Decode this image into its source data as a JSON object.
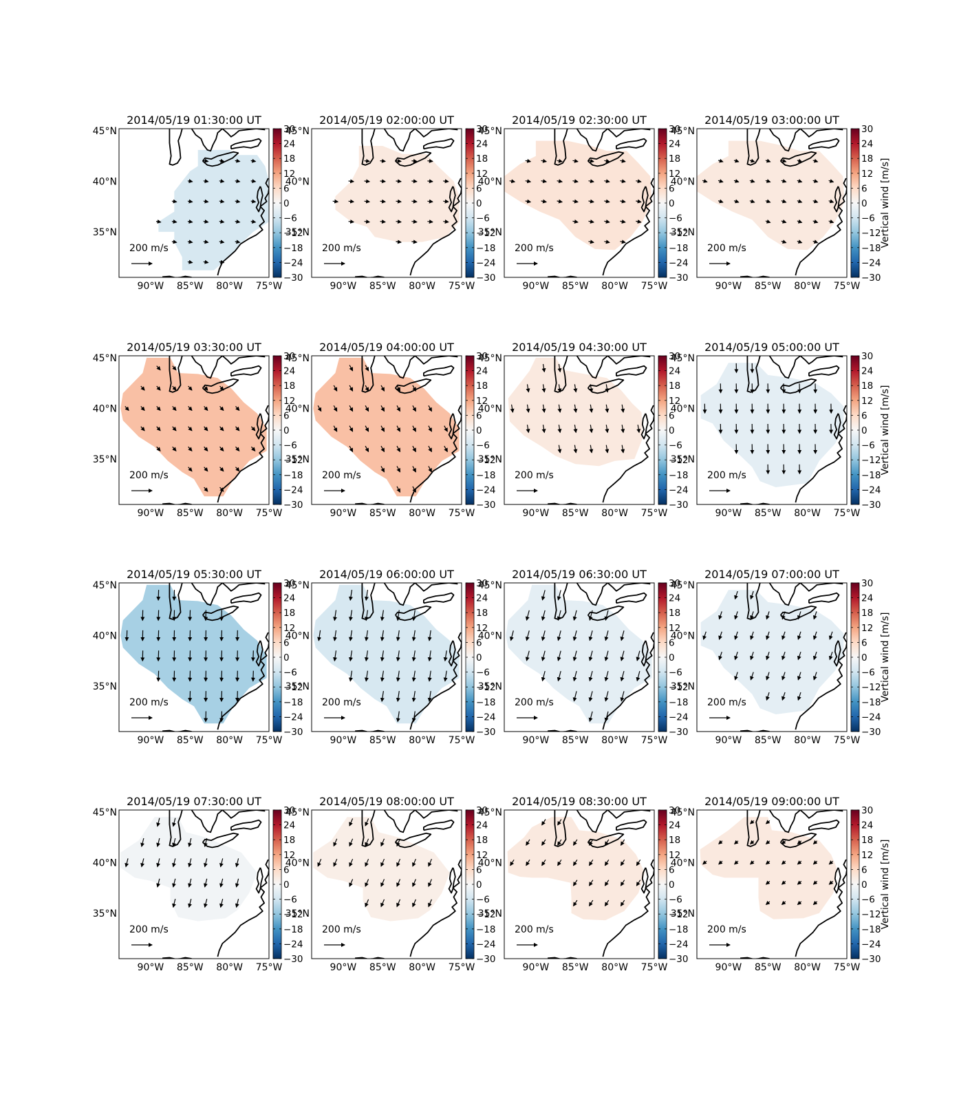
{
  "figure": {
    "colorbar_label": "Vertical wind [m/s]",
    "scale_label": "200 m/s",
    "scale_value": 200,
    "lat_ticks": [
      "45°N",
      "40°N",
      "35°N"
    ],
    "lon_ticks": [
      "90°W",
      "85°W",
      "80°W",
      "75°W"
    ],
    "colorbar_ticks": [
      "30",
      "24",
      "18",
      "12",
      "6",
      "0",
      "−6",
      "−12",
      "−18",
      "−24",
      "−30"
    ],
    "colorbar_range": [
      -30,
      30
    ],
    "colormap": [
      "#053061",
      "#2166ac",
      "#4393c3",
      "#92c5de",
      "#d1e5f0",
      "#f7f7f7",
      "#fddbc7",
      "#f4a582",
      "#d6604d",
      "#b2182b",
      "#67001f"
    ]
  },
  "chart_data": [
    {
      "type": "map",
      "title": "2014/05/19 01:30:00 UT",
      "vertical_wind": -5,
      "wind_u": 45,
      "wind_v": -8,
      "region": "A"
    },
    {
      "type": "map",
      "title": "2014/05/19 02:00:00 UT",
      "vertical_wind": 3,
      "wind_u": 50,
      "wind_v": -6,
      "region": "B"
    },
    {
      "type": "map",
      "title": "2014/05/19 02:30:00 UT",
      "vertical_wind": 4,
      "wind_u": 50,
      "wind_v": -10,
      "region": "C"
    },
    {
      "type": "map",
      "title": "2014/05/19 03:00:00 UT",
      "vertical_wind": 3,
      "wind_u": 45,
      "wind_v": -15,
      "region": "C"
    },
    {
      "type": "map",
      "title": "2014/05/19 03:30:00 UT",
      "vertical_wind": 9,
      "wind_u": 35,
      "wind_v": -40,
      "region": "D"
    },
    {
      "type": "map",
      "title": "2014/05/19 04:00:00 UT",
      "vertical_wind": 9,
      "wind_u": 30,
      "wind_v": -55,
      "region": "D"
    },
    {
      "type": "map",
      "title": "2014/05/19 04:30:00 UT",
      "vertical_wind": 3,
      "wind_u": 12,
      "wind_v": -75,
      "region": "E"
    },
    {
      "type": "map",
      "title": "2014/05/19 05:00:00 UT",
      "vertical_wind": -3,
      "wind_u": 2,
      "wind_v": -90,
      "region": "F"
    },
    {
      "type": "map",
      "title": "2014/05/19 05:30:00 UT",
      "vertical_wind": -10,
      "wind_u": -3,
      "wind_v": -100,
      "region": "D"
    },
    {
      "type": "map",
      "title": "2014/05/19 06:00:00 UT",
      "vertical_wind": -5,
      "wind_u": -15,
      "wind_v": -100,
      "region": "D"
    },
    {
      "type": "map",
      "title": "2014/05/19 06:30:00 UT",
      "vertical_wind": -3,
      "wind_u": -25,
      "wind_v": -95,
      "region": "D"
    },
    {
      "type": "map",
      "title": "2014/05/19 07:00:00 UT",
      "vertical_wind": -3,
      "wind_u": -25,
      "wind_v": -75,
      "region": "F"
    },
    {
      "type": "map",
      "title": "2014/05/19 07:30:00 UT",
      "vertical_wind": -1,
      "wind_u": -20,
      "wind_v": -80,
      "region": "G"
    },
    {
      "type": "map",
      "title": "2014/05/19 08:00:00 UT",
      "vertical_wind": 2,
      "wind_u": -30,
      "wind_v": -70,
      "region": "G"
    },
    {
      "type": "map",
      "title": "2014/05/19 08:30:00 UT",
      "vertical_wind": 3,
      "wind_u": -35,
      "wind_v": -55,
      "region": "H"
    },
    {
      "type": "map",
      "title": "2014/05/19 09:00:00 UT",
      "vertical_wind": 3,
      "wind_u": -35,
      "wind_v": -30,
      "region": "I"
    }
  ]
}
